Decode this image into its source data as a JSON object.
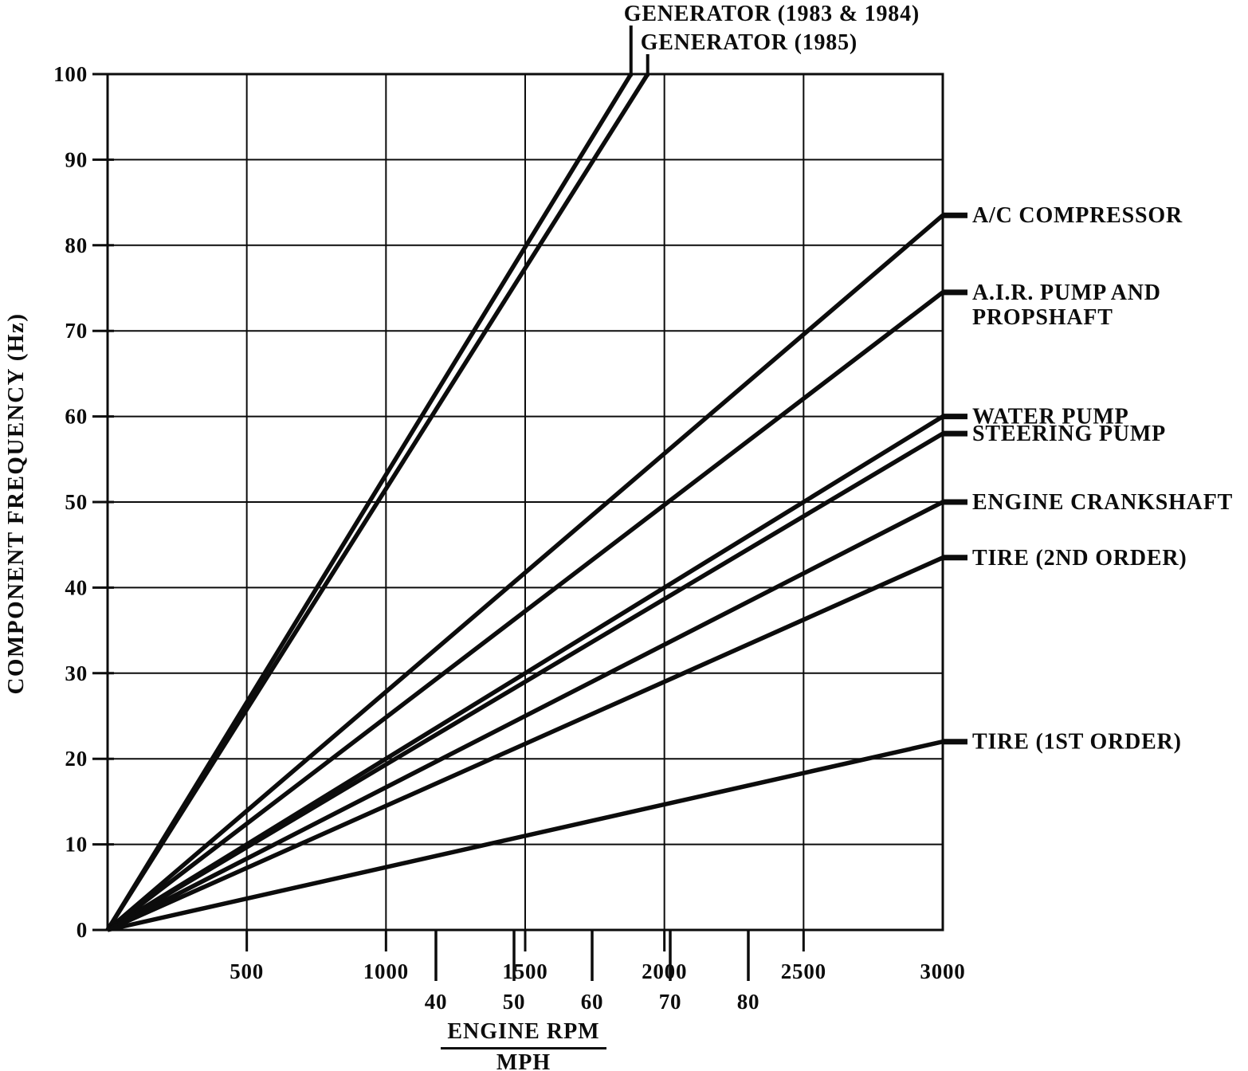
{
  "figure": {
    "background": "#ffffff",
    "ink_color": "#0c0c0c"
  },
  "axes": {
    "y_title": "COMPONENT FREQUENCY (Hz)",
    "x_title_top": "ENGINE RPM",
    "x_title_bottom": "MPH",
    "y_tick_labels": [
      0,
      10,
      20,
      30,
      40,
      50,
      60,
      70,
      80,
      90,
      100
    ],
    "x_rpm_tick_labels": [
      500,
      1000,
      1500,
      2000,
      2500,
      3000
    ],
    "x_mph_tick_labels": [
      40,
      50,
      60,
      70,
      80
    ]
  },
  "chart_data": {
    "type": "line",
    "title": "",
    "xlabel": "ENGINE RPM / MPH",
    "ylabel": "COMPONENT FREQUENCY (Hz)",
    "xlim": [
      0,
      3000
    ],
    "ylim": [
      0,
      100
    ],
    "grid": true,
    "x_gridline_step_rpm": 500,
    "y_gridline_step_hz": 10,
    "legend_position": "line-end-labels",
    "series": [
      {
        "name": "GENERATOR (1983 & 1984)",
        "label_lines": [
          "GENERATOR (1983 & 1984)"
        ],
        "label_side": "top",
        "x": [
          0,
          1880
        ],
        "y": [
          0,
          100
        ]
      },
      {
        "name": "GENERATOR (1985)",
        "label_lines": [
          "GENERATOR (1985)"
        ],
        "label_side": "top",
        "x": [
          0,
          1940
        ],
        "y": [
          0,
          100
        ]
      },
      {
        "name": "A/C COMPRESSOR",
        "label_lines": [
          "A/C COMPRESSOR"
        ],
        "label_side": "right",
        "x": [
          0,
          3000
        ],
        "y": [
          0,
          83.5
        ]
      },
      {
        "name": "A.I.R. PUMP AND PROPSHAFT",
        "label_lines": [
          "A.I.R. PUMP AND",
          "PROPSHAFT"
        ],
        "label_side": "right",
        "x": [
          0,
          3000
        ],
        "y": [
          0,
          74.5
        ]
      },
      {
        "name": "WATER PUMP",
        "label_lines": [
          "WATER PUMP"
        ],
        "label_side": "right",
        "x": [
          0,
          3000
        ],
        "y": [
          0,
          60
        ]
      },
      {
        "name": "STEERING PUMP",
        "label_lines": [
          "STEERING PUMP"
        ],
        "label_side": "right",
        "x": [
          0,
          3000
        ],
        "y": [
          0,
          58
        ]
      },
      {
        "name": "ENGINE CRANKSHAFT",
        "label_lines": [
          "ENGINE CRANKSHAFT"
        ],
        "label_side": "right",
        "x": [
          0,
          3000
        ],
        "y": [
          0,
          50
        ]
      },
      {
        "name": "TIRE (2ND ORDER)",
        "label_lines": [
          "TIRE (2ND ORDER)"
        ],
        "label_side": "right",
        "x": [
          0,
          3000
        ],
        "y": [
          0,
          43.5
        ]
      },
      {
        "name": "TIRE (1ST ORDER)",
        "label_lines": [
          "TIRE (1ST ORDER)"
        ],
        "label_side": "right",
        "x": [
          0,
          3000
        ],
        "y": [
          0,
          22
        ]
      }
    ]
  }
}
